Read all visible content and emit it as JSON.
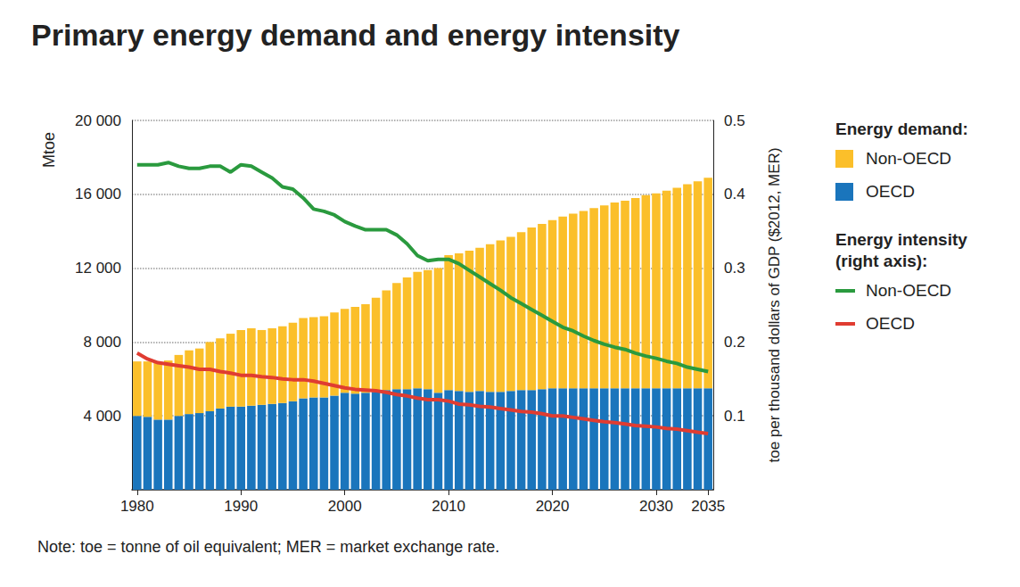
{
  "chart_data": {
    "type": "bar",
    "title": "Primary energy demand and energy intensity",
    "note": "Note: toe = tonne of oil equivalent; MER = market exchange rate.",
    "y_label": "Mtoe",
    "y2_label": "toe per thousand dollars of GDP ($2012, MER)",
    "categories": [
      "1980",
      null,
      null,
      null,
      null,
      null,
      null,
      null,
      null,
      null,
      "1990",
      null,
      null,
      null,
      null,
      null,
      null,
      null,
      null,
      null,
      "2000",
      null,
      null,
      null,
      null,
      null,
      null,
      null,
      null,
      null,
      "2010",
      null,
      null,
      null,
      null,
      null,
      null,
      null,
      null,
      null,
      "2020",
      null,
      null,
      null,
      null,
      null,
      null,
      null,
      null,
      null,
      "2030",
      null,
      null,
      null,
      null,
      "2035"
    ],
    "series": [
      {
        "name": "Non-OECD",
        "type": "bar",
        "color": "#fbbf2a",
        "values": [
          2950,
          3000,
          3100,
          3200,
          3300,
          3450,
          3500,
          3750,
          3800,
          3950,
          4150,
          4200,
          4050,
          4100,
          4150,
          4250,
          4350,
          4350,
          4400,
          4500,
          4550,
          4700,
          4800,
          5100,
          5400,
          5750,
          6050,
          6300,
          6450,
          6750,
          7300,
          7450,
          7650,
          7750,
          8000,
          8200,
          8350,
          8550,
          8800,
          8950,
          9100,
          9300,
          9450,
          9600,
          9750,
          9900,
          10050,
          10150,
          10300,
          10450,
          10550,
          10700,
          10850,
          11050,
          11200,
          11400
        ]
      },
      {
        "name": "OECD",
        "type": "bar",
        "color": "#1a75bc",
        "values": [
          4000,
          3950,
          3800,
          3800,
          4000,
          4100,
          4150,
          4250,
          4400,
          4500,
          4500,
          4550,
          4600,
          4650,
          4700,
          4800,
          4950,
          5000,
          5000,
          5100,
          5250,
          5200,
          5250,
          5300,
          5400,
          5450,
          5450,
          5500,
          5450,
          5250,
          5400,
          5350,
          5300,
          5350,
          5300,
          5300,
          5350,
          5400,
          5400,
          5450,
          5500,
          5500,
          5500,
          5500,
          5500,
          5500,
          5500,
          5500,
          5500,
          5500,
          5500,
          5500,
          5500,
          5500,
          5500,
          5500
        ]
      },
      {
        "name": "Non-OECD",
        "type": "line",
        "axis": "y2",
        "color": "#2a9a3e",
        "values": [
          0.44,
          0.44,
          0.44,
          0.443,
          0.438,
          0.435,
          0.435,
          0.438,
          0.438,
          0.43,
          0.44,
          0.438,
          0.43,
          0.422,
          0.41,
          0.407,
          0.395,
          0.38,
          0.377,
          0.372,
          0.363,
          0.357,
          0.352,
          0.352,
          0.352,
          0.345,
          0.333,
          0.317,
          0.31,
          0.312,
          0.312,
          0.306,
          0.297,
          0.288,
          0.279,
          0.27,
          0.26,
          0.252,
          0.244,
          0.236,
          0.228,
          0.22,
          0.215,
          0.208,
          0.202,
          0.197,
          0.193,
          0.19,
          0.185,
          0.181,
          0.178,
          0.174,
          0.171,
          0.166,
          0.163,
          0.16
        ]
      },
      {
        "name": "OECD",
        "type": "line",
        "axis": "y2",
        "color": "#e03c31",
        "values": [
          0.185,
          0.177,
          0.172,
          0.17,
          0.168,
          0.166,
          0.163,
          0.163,
          0.16,
          0.158,
          0.155,
          0.155,
          0.153,
          0.152,
          0.15,
          0.149,
          0.149,
          0.147,
          0.144,
          0.141,
          0.138,
          0.136,
          0.135,
          0.134,
          0.132,
          0.129,
          0.127,
          0.124,
          0.122,
          0.122,
          0.12,
          0.116,
          0.115,
          0.113,
          0.112,
          0.11,
          0.108,
          0.106,
          0.105,
          0.103,
          0.1,
          0.1,
          0.098,
          0.096,
          0.094,
          0.092,
          0.091,
          0.089,
          0.087,
          0.086,
          0.085,
          0.083,
          0.082,
          0.08,
          0.078,
          0.076
        ]
      }
    ],
    "legend_titles": {
      "bar": "Energy demand:",
      "line": "Energy intensity (right axis):"
    },
    "ylim": [
      0,
      20000
    ],
    "yticks": [
      {
        "value": 4000,
        "label": "4 000"
      },
      {
        "value": 8000,
        "label": "8 000"
      },
      {
        "value": 12000,
        "label": "12 000"
      },
      {
        "value": 16000,
        "label": "16 000"
      },
      {
        "value": 20000,
        "label": "20 000"
      }
    ],
    "y2lim": [
      0,
      0.5
    ],
    "y2ticks": [
      0.1,
      0.2,
      0.3,
      0.4,
      0.5
    ],
    "stacked": true,
    "grid": true,
    "legend": "right"
  }
}
